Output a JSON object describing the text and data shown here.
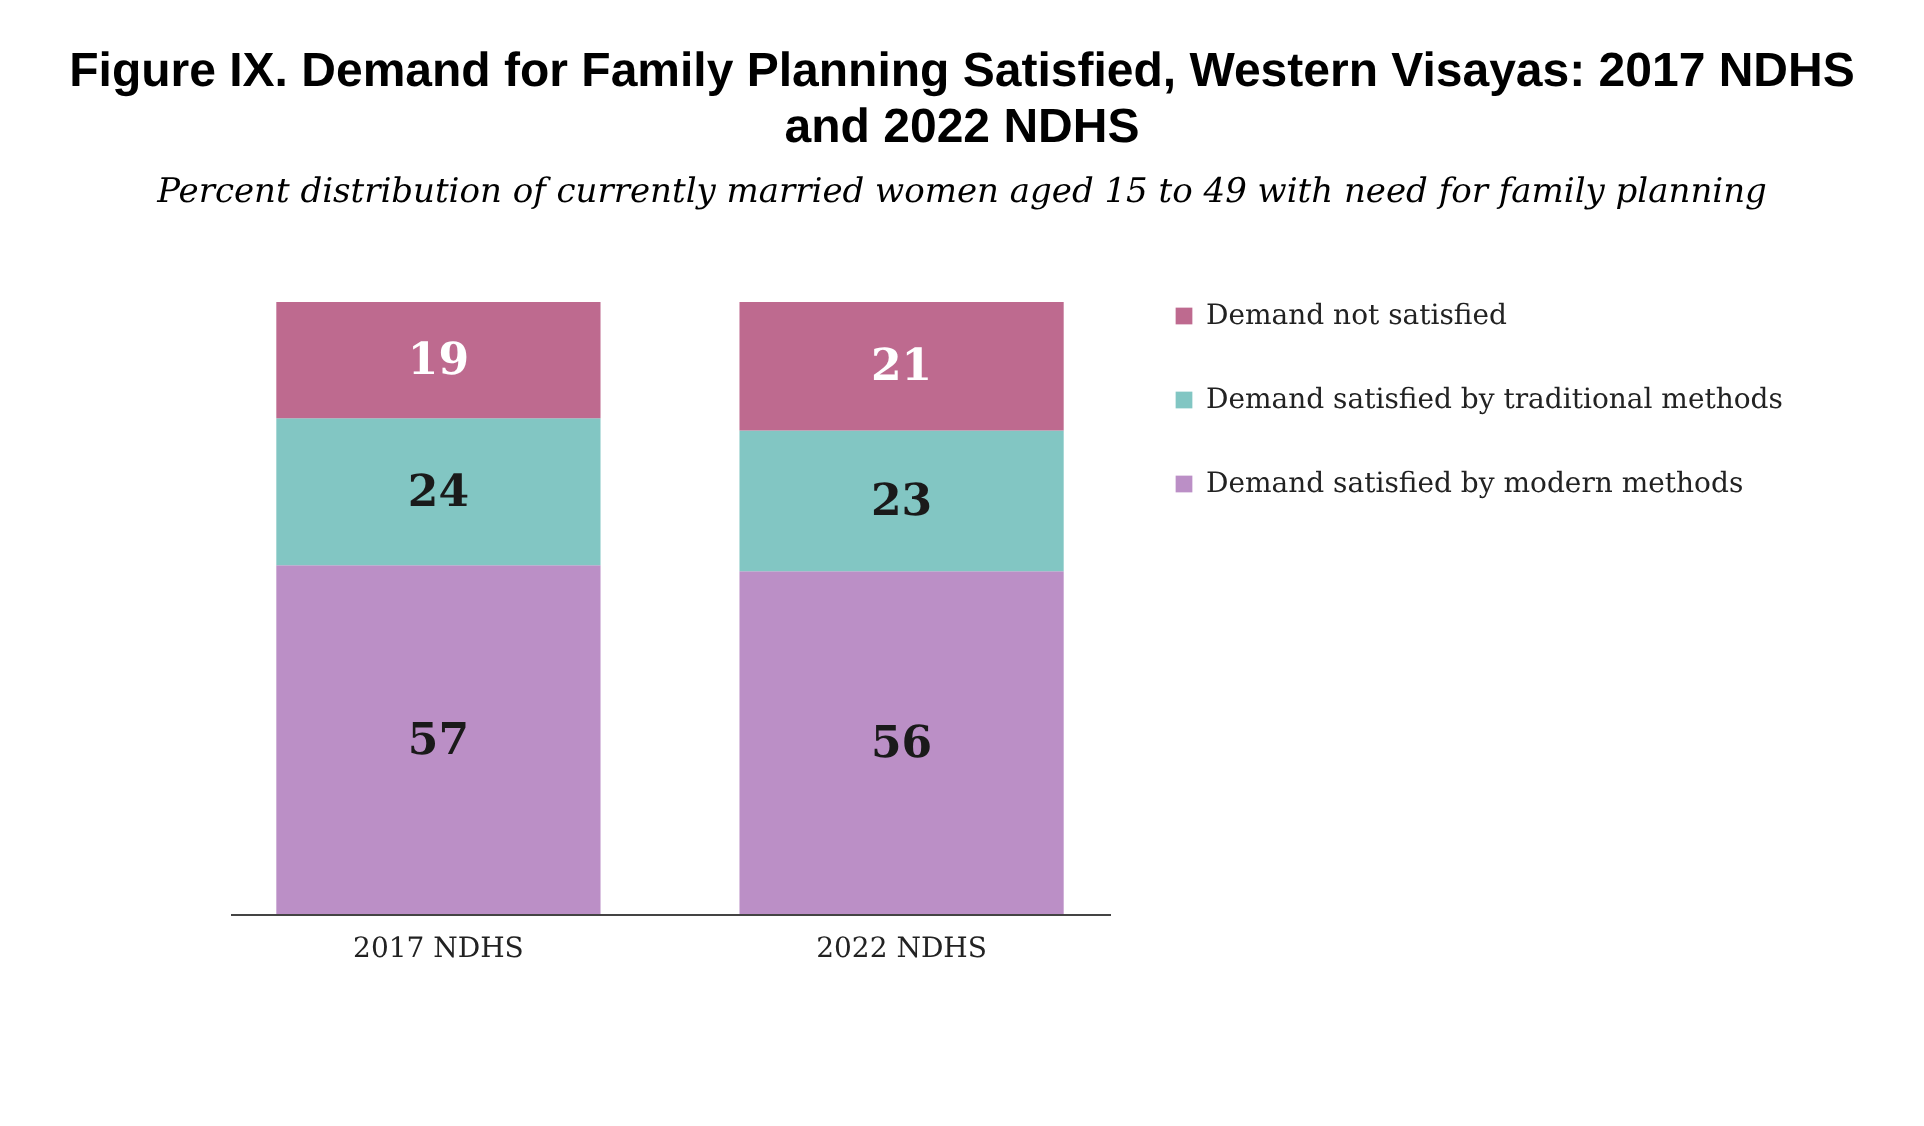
{
  "chart_data": {
    "type": "bar",
    "title": "Figure IX. Demand for Family Planning Satisfied, Western Visayas: 2017 NDHS and 2022 NDHS",
    "subtitle": "Percent distribution of currently married women aged 15 to 49 with need for family planning",
    "categories": [
      "2017 NDHS",
      "2022 NDHS"
    ],
    "stacked": true,
    "tick_labels": "x",
    "data_labels": true,
    "legend": "right",
    "series": [
      {
        "name": "Demand satisfied by modern methods",
        "color": "#bb8fc6",
        "values": [
          57,
          56
        ]
      },
      {
        "name": "Demand satisfied by traditional methods",
        "color": "#82c6c3",
        "values": [
          24,
          23
        ]
      },
      {
        "name": "Demand not satisfied",
        "color": "#be6a8f",
        "values": [
          19,
          21
        ]
      }
    ]
  }
}
